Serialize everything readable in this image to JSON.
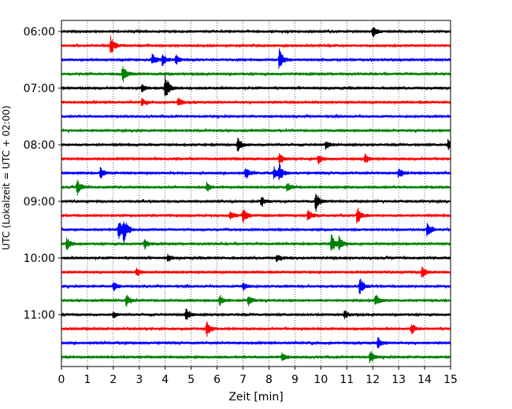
{
  "chart_data": {
    "type": "line",
    "title": "",
    "xlabel": "Zeit  [min]",
    "ylabel": "UTC (Lokalzeit = UTC + 02:00)",
    "xlim": [
      0,
      15
    ],
    "x_ticks": [
      "0",
      "1",
      "2",
      "3",
      "4",
      "5",
      "6",
      "7",
      "8",
      "9",
      "10",
      "11",
      "12",
      "13",
      "14",
      "15"
    ],
    "y_ticks": [
      {
        "label": "06:00",
        "row": 0
      },
      {
        "label": "07:00",
        "row": 4
      },
      {
        "label": "08:00",
        "row": 8
      },
      {
        "label": "09:00",
        "row": 12
      },
      {
        "label": "10:00",
        "row": 16
      },
      {
        "label": "11:00",
        "row": 20
      }
    ],
    "vertical_gridlines": "dotted, every 1 min",
    "trace_colors": [
      "#000000",
      "#ff0000",
      "#0000ff",
      "#008000"
    ],
    "traces": [
      {
        "start": "06:00",
        "events": [
          {
            "t": 12.0,
            "amp": 0.35
          }
        ]
      },
      {
        "start": "06:15",
        "events": [
          {
            "t": 1.9,
            "amp": 0.55
          }
        ]
      },
      {
        "start": "06:30",
        "events": [
          {
            "t": 3.5,
            "amp": 0.35
          },
          {
            "t": 3.9,
            "amp": 0.4
          },
          {
            "t": 4.4,
            "amp": 0.3
          },
          {
            "t": 8.4,
            "amp": 0.7
          }
        ]
      },
      {
        "start": "06:45",
        "events": [
          {
            "t": 2.35,
            "amp": 0.55
          }
        ]
      },
      {
        "start": "07:00",
        "events": [
          {
            "t": 4.0,
            "amp": 0.85
          },
          {
            "t": 3.1,
            "amp": 0.2
          }
        ]
      },
      {
        "start": "07:15",
        "events": [
          {
            "t": 4.5,
            "amp": 0.3
          },
          {
            "t": 3.1,
            "amp": 0.2
          }
        ]
      },
      {
        "start": "07:30",
        "events": []
      },
      {
        "start": "07:45",
        "events": []
      },
      {
        "start": "08:00",
        "events": [
          {
            "t": 6.8,
            "amp": 0.45
          },
          {
            "t": 10.2,
            "amp": 0.3
          },
          {
            "t": 14.9,
            "amp": 0.3
          }
        ]
      },
      {
        "start": "08:15",
        "events": [
          {
            "t": 8.4,
            "amp": 0.4
          },
          {
            "t": 9.9,
            "amp": 0.3
          },
          {
            "t": 11.7,
            "amp": 0.3
          }
        ]
      },
      {
        "start": "08:30",
        "events": [
          {
            "t": 1.5,
            "amp": 0.35
          },
          {
            "t": 7.1,
            "amp": 0.4
          },
          {
            "t": 8.2,
            "amp": 0.4
          },
          {
            "t": 8.4,
            "amp": 0.45
          },
          {
            "t": 13.0,
            "amp": 0.3
          }
        ]
      },
      {
        "start": "08:45",
        "events": [
          {
            "t": 0.6,
            "amp": 0.5
          },
          {
            "t": 5.6,
            "amp": 0.3
          },
          {
            "t": 8.7,
            "amp": 0.35
          }
        ]
      },
      {
        "start": "09:00",
        "events": [
          {
            "t": 9.8,
            "amp": 0.6
          },
          {
            "t": 7.7,
            "amp": 0.3
          }
        ]
      },
      {
        "start": "09:15",
        "events": [
          {
            "t": 7.0,
            "amp": 0.5
          },
          {
            "t": 9.5,
            "amp": 0.4
          },
          {
            "t": 11.4,
            "amp": 0.55
          },
          {
            "t": 6.5,
            "amp": 0.3
          }
        ]
      },
      {
        "start": "09:30",
        "events": [
          {
            "t": 2.2,
            "amp": 0.6
          },
          {
            "t": 2.4,
            "amp": 0.7
          },
          {
            "t": 14.1,
            "amp": 0.45
          }
        ]
      },
      {
        "start": "09:45",
        "events": [
          {
            "t": 0.2,
            "amp": 0.35
          },
          {
            "t": 3.2,
            "amp": 0.3
          },
          {
            "t": 10.4,
            "amp": 0.6
          },
          {
            "t": 10.7,
            "amp": 0.4
          }
        ]
      },
      {
        "start": "10:00",
        "events": [
          {
            "t": 4.1,
            "amp": 0.25
          },
          {
            "t": 8.3,
            "amp": 0.25
          }
        ]
      },
      {
        "start": "10:15",
        "events": [
          {
            "t": 2.9,
            "amp": 0.3
          },
          {
            "t": 13.9,
            "amp": 0.35
          }
        ]
      },
      {
        "start": "10:30",
        "events": [
          {
            "t": 2.0,
            "amp": 0.25
          },
          {
            "t": 7.0,
            "amp": 0.25
          },
          {
            "t": 11.5,
            "amp": 0.5
          }
        ]
      },
      {
        "start": "10:45",
        "events": [
          {
            "t": 2.5,
            "amp": 0.35
          },
          {
            "t": 6.1,
            "amp": 0.3
          },
          {
            "t": 7.2,
            "amp": 0.3
          },
          {
            "t": 12.1,
            "amp": 0.35
          }
        ]
      },
      {
        "start": "11:00",
        "events": [
          {
            "t": 4.8,
            "amp": 0.4
          },
          {
            "t": 2.0,
            "amp": 0.2
          },
          {
            "t": 10.9,
            "amp": 0.25
          }
        ]
      },
      {
        "start": "11:15",
        "events": [
          {
            "t": 5.6,
            "amp": 0.5
          },
          {
            "t": 13.5,
            "amp": 0.3
          }
        ]
      },
      {
        "start": "11:30",
        "events": [
          {
            "t": 12.2,
            "amp": 0.35
          }
        ]
      },
      {
        "start": "11:45",
        "events": [
          {
            "t": 11.9,
            "amp": 0.4
          },
          {
            "t": 8.5,
            "amp": 0.3
          }
        ]
      }
    ]
  }
}
